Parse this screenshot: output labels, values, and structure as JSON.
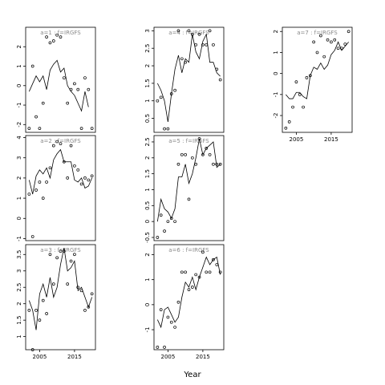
{
  "figure": {
    "xlabel": "Year"
  },
  "chart_data": [
    {
      "type": "scatter",
      "title": "a=1 : f=IRGFS",
      "xlim": [
        2001,
        2021
      ],
      "ylim": [
        -2.4,
        3.0
      ],
      "yticks": [
        -2,
        -1,
        0,
        1,
        2
      ],
      "xticks": [],
      "series": [
        {
          "mode": "points",
          "x": [
            2002,
            2003,
            2004,
            2005,
            2006,
            2007,
            2008,
            2009,
            2010,
            2011,
            2012,
            2013,
            2014,
            2015,
            2016,
            2017,
            2018,
            2019,
            2020
          ],
          "y": [
            -2.2,
            1.0,
            -1.6,
            -2.2,
            -0.9,
            2.5,
            2.2,
            2.3,
            2.6,
            2.5,
            0.4,
            -0.9,
            -0.2,
            0.1,
            -0.2,
            -2.2,
            0.4,
            -0.2,
            -2.2
          ]
        },
        {
          "mode": "line",
          "x": [
            2002,
            2003,
            2004,
            2005,
            2006,
            2007,
            2008,
            2009,
            2010,
            2011,
            2012,
            2013,
            2014,
            2015,
            2016,
            2017,
            2018,
            2019
          ],
          "y": [
            -0.3,
            0.1,
            0.5,
            0.2,
            0.5,
            -0.2,
            0.8,
            1.1,
            1.3,
            0.7,
            0.9,
            0.0,
            -0.3,
            -0.5,
            -0.9,
            -1.3,
            -0.3,
            -1.1
          ]
        }
      ]
    },
    {
      "type": "scatter",
      "title": "a=2 : f=IRGFS",
      "xlim": [
        2001,
        2021
      ],
      "ylim": [
        -1.1,
        4.1
      ],
      "yticks": [
        -1,
        0,
        1,
        2,
        3,
        4
      ],
      "xticks": [],
      "series": [
        {
          "mode": "points",
          "x": [
            2002,
            2003,
            2004,
            2005,
            2006,
            2007,
            2008,
            2009,
            2010,
            2011,
            2012,
            2013,
            2014,
            2015,
            2016,
            2017,
            2018,
            2019,
            2020
          ],
          "y": [
            1.2,
            -0.9,
            1.4,
            1.8,
            1.0,
            1.8,
            2.5,
            3.6,
            3.8,
            3.7,
            2.8,
            2.0,
            3.6,
            2.6,
            2.4,
            1.7,
            2.0,
            1.9,
            2.1
          ]
        },
        {
          "mode": "line",
          "x": [
            2002,
            2003,
            2004,
            2005,
            2006,
            2007,
            2008,
            2009,
            2010,
            2011,
            2012,
            2013,
            2014,
            2015,
            2016,
            2017,
            2018,
            2019,
            2020
          ],
          "y": [
            1.9,
            1.2,
            2.1,
            2.4,
            2.2,
            2.5,
            2.0,
            2.9,
            3.2,
            3.4,
            2.8,
            2.8,
            2.8,
            1.9,
            1.8,
            2.0,
            1.5,
            1.6,
            2.0
          ]
        }
      ]
    },
    {
      "type": "scatter",
      "title": "a=3 : f=IRGFS",
      "xlim": [
        2001,
        2021
      ],
      "ylim": [
        0.6,
        3.8
      ],
      "yticks": [
        1.0,
        1.5,
        2.0,
        2.5,
        3.0,
        3.5
      ],
      "xticks": [
        2005,
        2015
      ],
      "series": [
        {
          "mode": "points",
          "x": [
            2002,
            2003,
            2004,
            2005,
            2006,
            2007,
            2008,
            2009,
            2010,
            2011,
            2012,
            2013,
            2014,
            2015,
            2016,
            2017,
            2018,
            2019,
            2020
          ],
          "y": [
            1.8,
            0.6,
            1.8,
            1.5,
            2.1,
            1.7,
            3.5,
            2.6,
            3.4,
            3.6,
            3.6,
            2.6,
            3.3,
            3.5,
            2.5,
            2.4,
            1.8,
            1.9,
            2.3
          ]
        },
        {
          "mode": "line",
          "x": [
            2002,
            2003,
            2004,
            2005,
            2006,
            2007,
            2008,
            2009,
            2010,
            2011,
            2012,
            2013,
            2014,
            2015,
            2016,
            2017,
            2018,
            2019,
            2020
          ],
          "y": [
            2.1,
            1.8,
            1.2,
            2.3,
            2.6,
            2.2,
            2.8,
            2.2,
            2.5,
            3.2,
            3.7,
            3.0,
            3.1,
            3.3,
            2.4,
            2.5,
            2.2,
            1.9,
            2.2
          ]
        }
      ]
    },
    {
      "type": "scatter",
      "title": "a=4 : f=IRGFS",
      "xlim": [
        2001,
        2021
      ],
      "ylim": [
        0.1,
        3.1
      ],
      "yticks": [
        0.5,
        1.0,
        1.5,
        2.0,
        2.5,
        3.0
      ],
      "xticks": [],
      "series": [
        {
          "mode": "points",
          "x": [
            2002,
            2003,
            2004,
            2005,
            2006,
            2007,
            2008,
            2009,
            2010,
            2011,
            2012,
            2013,
            2014,
            2015,
            2016,
            2017,
            2018,
            2019,
            2020
          ],
          "y": [
            1.0,
            1.1,
            0.2,
            0.2,
            1.2,
            1.3,
            3.0,
            2.2,
            2.1,
            3.0,
            2.9,
            2.6,
            2.9,
            2.6,
            2.6,
            3.0,
            2.6,
            1.9,
            1.6
          ]
        },
        {
          "mode": "line",
          "x": [
            2002,
            2003,
            2004,
            2005,
            2006,
            2007,
            2008,
            2009,
            2010,
            2011,
            2012,
            2013,
            2014,
            2015,
            2016,
            2017,
            2018,
            2019,
            2020
          ],
          "y": [
            1.5,
            1.3,
            1.0,
            0.4,
            1.2,
            1.9,
            2.3,
            1.8,
            2.2,
            2.1,
            2.9,
            2.4,
            2.2,
            2.7,
            2.9,
            2.1,
            2.1,
            1.8,
            1.7
          ]
        }
      ]
    },
    {
      "type": "scatter",
      "title": "a=5 : f=IRGFS",
      "xlim": [
        2001,
        2021
      ],
      "ylim": [
        -0.6,
        2.7
      ],
      "yticks": [
        -0.5,
        0.0,
        0.5,
        1.0,
        1.5,
        2.0,
        2.5
      ],
      "xticks": [],
      "series": [
        {
          "mode": "points",
          "x": [
            2002,
            2003,
            2004,
            2005,
            2006,
            2007,
            2008,
            2009,
            2010,
            2011,
            2012,
            2013,
            2014,
            2015,
            2016,
            2017,
            2018,
            2019,
            2020
          ],
          "y": [
            -0.5,
            0.2,
            -0.3,
            0.0,
            0.1,
            0.0,
            1.8,
            2.1,
            2.1,
            0.7,
            2.0,
            1.8,
            2.6,
            2.1,
            2.3,
            2.1,
            1.8,
            1.8,
            1.8
          ]
        },
        {
          "mode": "line",
          "x": [
            2002,
            2003,
            2004,
            2005,
            2006,
            2007,
            2008,
            2009,
            2010,
            2011,
            2012,
            2013,
            2014,
            2015,
            2016,
            2017,
            2018,
            2019,
            2020
          ],
          "y": [
            0.0,
            0.7,
            0.4,
            0.3,
            0.1,
            0.4,
            1.4,
            1.4,
            1.8,
            1.2,
            1.5,
            2.0,
            2.6,
            2.1,
            2.3,
            2.4,
            2.5,
            1.7,
            1.8
          ]
        }
      ]
    },
    {
      "type": "scatter",
      "title": "a=6 : f=IRGFS",
      "xlim": [
        2001,
        2021
      ],
      "ylim": [
        -1.8,
        2.4
      ],
      "yticks": [
        -1,
        0,
        1,
        2
      ],
      "xticks": [
        2005,
        2015
      ],
      "series": [
        {
          "mode": "points",
          "x": [
            2002,
            2003,
            2004,
            2005,
            2006,
            2007,
            2008,
            2009,
            2010,
            2011,
            2012,
            2013,
            2014,
            2015,
            2016,
            2017,
            2018,
            2019,
            2020
          ],
          "y": [
            -1.7,
            -0.2,
            -1.7,
            -0.5,
            -0.7,
            -0.9,
            0.1,
            1.3,
            1.3,
            0.6,
            0.7,
            1.2,
            1.1,
            2.1,
            1.3,
            1.3,
            1.8,
            1.6,
            1.3
          ]
        },
        {
          "mode": "line",
          "x": [
            2002,
            2003,
            2004,
            2005,
            2006,
            2007,
            2008,
            2009,
            2010,
            2011,
            2012,
            2013,
            2014,
            2015,
            2016,
            2017,
            2018,
            2019,
            2020
          ],
          "y": [
            -0.6,
            -0.9,
            -0.2,
            -0.1,
            -0.4,
            -0.7,
            -0.5,
            0.3,
            0.9,
            0.7,
            1.1,
            0.6,
            1.1,
            1.5,
            1.9,
            1.6,
            1.8,
            1.9,
            1.2
          ]
        }
      ]
    },
    {
      "type": "scatter",
      "title": "a=7 : f=IRGFS",
      "xlim": [
        2001,
        2021
      ],
      "ylim": [
        -2.8,
        2.2
      ],
      "yticks": [
        -2,
        -1,
        0,
        1,
        2
      ],
      "xticks": [
        2005,
        2015
      ],
      "series": [
        {
          "mode": "points",
          "x": [
            2002,
            2003,
            2004,
            2005,
            2006,
            2007,
            2008,
            2009,
            2010,
            2011,
            2012,
            2013,
            2014,
            2015,
            2016,
            2017,
            2018,
            2019,
            2020
          ],
          "y": [
            -2.6,
            -2.3,
            -1.6,
            -0.4,
            -1.0,
            -1.6,
            -0.2,
            -0.1,
            1.5,
            1.0,
            1.8,
            0.8,
            1.6,
            1.5,
            1.6,
            1.2,
            1.2,
            1.4,
            2.0
          ]
        },
        {
          "mode": "line",
          "x": [
            2002,
            2003,
            2004,
            2005,
            2006,
            2007,
            2008,
            2009,
            2010,
            2011,
            2012,
            2013,
            2014,
            2015,
            2016,
            2017,
            2018,
            2019,
            2020
          ],
          "y": [
            -1.0,
            -1.2,
            -1.2,
            -0.9,
            -0.9,
            -1.1,
            -1.2,
            -0.1,
            0.3,
            0.2,
            0.5,
            0.2,
            0.4,
            0.9,
            1.1,
            1.5,
            1.1,
            1.3,
            1.5
          ]
        }
      ]
    }
  ]
}
